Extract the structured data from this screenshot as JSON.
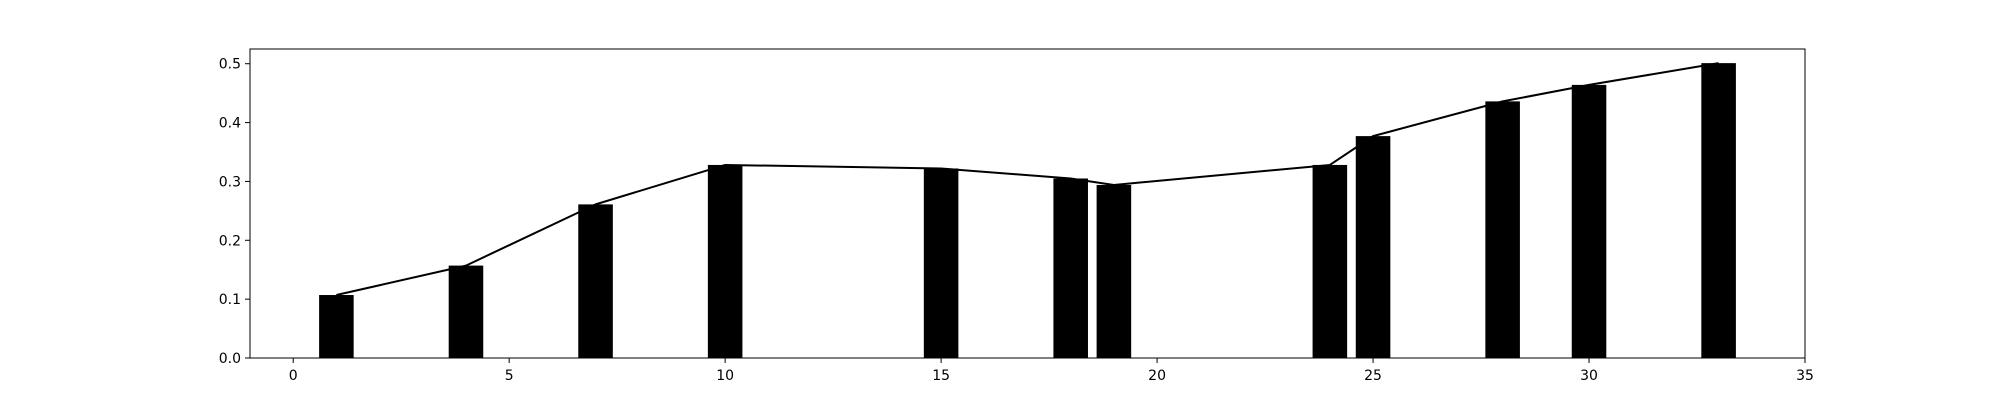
{
  "chart_data": {
    "type": "bar",
    "title": "",
    "xlabel": "",
    "ylabel": "",
    "xlim": [
      -1,
      35
    ],
    "ylim": [
      0,
      0.525
    ],
    "grid": false,
    "bar_color": "#000000",
    "line_color": "#000000",
    "bar_width": 0.8,
    "xticks": [
      0,
      5,
      10,
      15,
      20,
      25,
      30,
      35
    ],
    "xtick_labels": [
      "0",
      "5",
      "10",
      "15",
      "20",
      "25",
      "30",
      "35"
    ],
    "yticks": [
      0.0,
      0.1,
      0.2,
      0.3,
      0.4,
      0.5
    ],
    "ytick_labels": [
      "0.0",
      "0.1",
      "0.2",
      "0.3",
      "0.4",
      "0.5"
    ],
    "x": [
      1,
      4,
      7,
      10,
      15,
      18,
      19,
      24,
      25,
      28,
      30,
      33
    ],
    "series": [
      {
        "type": "bar",
        "values": [
          0.107,
          0.157,
          0.261,
          0.328,
          0.322,
          0.305,
          0.294,
          0.328,
          0.377,
          0.436,
          0.464,
          0.501
        ]
      },
      {
        "type": "line",
        "values": [
          0.107,
          0.157,
          0.261,
          0.328,
          0.322,
          0.305,
          0.294,
          0.328,
          0.377,
          0.436,
          0.464,
          0.501
        ]
      }
    ]
  }
}
